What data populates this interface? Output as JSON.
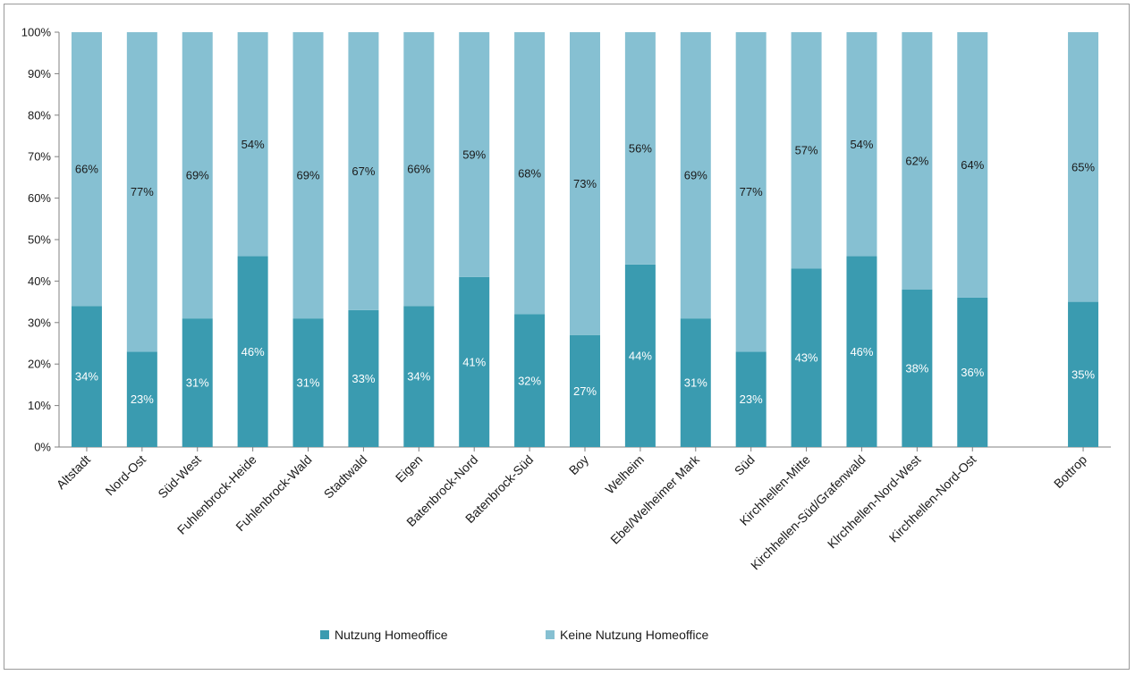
{
  "chart_data": {
    "type": "bar",
    "stacked": true,
    "percent": true,
    "title": "",
    "xlabel": "",
    "ylabel": "",
    "ylim": [
      0,
      100
    ],
    "yticks": [
      "0%",
      "10%",
      "20%",
      "30%",
      "40%",
      "50%",
      "60%",
      "70%",
      "80%",
      "90%",
      "100%"
    ],
    "categories": [
      "Altstadt",
      "Nord-Ost",
      "Süd-West",
      "Fuhlenbrock-Heide",
      "Fuhlenbrock-Wald",
      "Stadtwald",
      "Eigen",
      "Batenbrock-Nord",
      "Batenbrock-Süd",
      "Boy",
      "Welheim",
      "Ebel/Welheimer Mark",
      "Süd",
      "Kirchhellen-Mitte",
      "Kirchhellen-Süd/Grafenwald",
      "Klrchhellen-Nord-West",
      "Kirchhellen-Nord-Ost",
      "Bottrop"
    ],
    "gap_before_last": true,
    "series": [
      {
        "name": "Nutzung Homeoffice",
        "color": "#3a9bb0",
        "values": [
          34,
          23,
          31,
          46,
          31,
          33,
          34,
          41,
          32,
          27,
          44,
          31,
          23,
          43,
          46,
          38,
          36,
          35
        ],
        "labels": [
          "34%",
          "23%",
          "31%",
          "46%",
          "31%",
          "33%",
          "34%",
          "41%",
          "32%",
          "27%",
          "44%",
          "31%",
          "23%",
          "43%",
          "46%",
          "38%",
          "36%",
          "35%"
        ]
      },
      {
        "name": "Keine Nutzung Homeoffice",
        "color": "#86c0d2",
        "values": [
          66,
          77,
          69,
          54,
          69,
          67,
          66,
          59,
          68,
          73,
          56,
          69,
          77,
          57,
          54,
          62,
          64,
          65
        ],
        "labels": [
          "66%",
          "77%",
          "69%",
          "54%",
          "69%",
          "67%",
          "66%",
          "59%",
          "68%",
          "73%",
          "56%",
          "69%",
          "77%",
          "57%",
          "54%",
          "62%",
          "64%",
          "65%"
        ]
      }
    ],
    "grid": false,
    "legend": "bottom"
  }
}
